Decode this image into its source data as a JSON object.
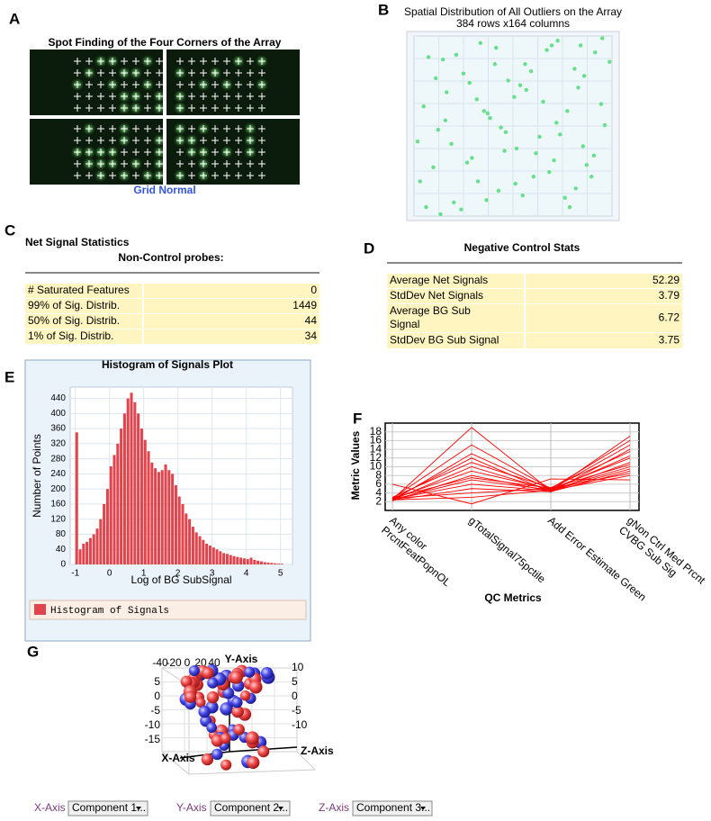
{
  "panel_labels": [
    "A",
    "B",
    "C",
    "D",
    "E",
    "F",
    "G"
  ],
  "panel_a": {
    "title": "Spot Finding of the Four Corners of the Array",
    "caption": "Grid Normal"
  },
  "panel_c": {
    "title": "Net Signal Statistics",
    "subtitle": "Non-Control probes:",
    "rows": [
      [
        "# Saturated Features",
        0
      ],
      [
        "99% of Sig. Distrib.",
        1449
      ],
      [
        "50% of Sig. Distrib.",
        44
      ],
      [
        "1% of Sig. Distrib.",
        34
      ]
    ]
  },
  "panel_d": {
    "title": "Negative Control Stats",
    "rows": [
      [
        "Average Net Signals",
        52.29
      ],
      [
        "StdDev Net Signals",
        3.79
      ],
      [
        "Average BG Sub Signal",
        6.72
      ],
      [
        "StdDev BG Sub Signal",
        3.75
      ]
    ]
  },
  "panel_g": {
    "axis_titles": [
      "Y-Axis",
      "Z-Axis",
      "X-Axis"
    ],
    "top_ticks": [
      -40,
      -20,
      0,
      20,
      40
    ],
    "left_ticks": [
      5,
      0,
      -5,
      -10,
      -15
    ],
    "right_ticks": [
      10,
      5,
      0,
      -5,
      -10
    ],
    "controls": [
      {
        "label": "X-Axis",
        "value": "Component 1..."
      },
      {
        "label": "Y-Axis",
        "value": "Component 2..."
      },
      {
        "label": "Z-Axis",
        "value": "Component 3..."
      }
    ]
  },
  "chart_data": [
    {
      "type": "scatter",
      "title": "Spatial Distribution of All Outliers on the Array",
      "subtitle": "384 rows x164 columns",
      "color": "#66e08a",
      "xlim": [
        0,
        164
      ],
      "ylim": [
        0,
        384
      ],
      "x": [
        5,
        12,
        20,
        27,
        33,
        41,
        48,
        55,
        63,
        70,
        78,
        85,
        92,
        99,
        107,
        114,
        121,
        129,
        136,
        143,
        150,
        158,
        8,
        16,
        24,
        31,
        39,
        46,
        53,
        61,
        68,
        75,
        83,
        90,
        97,
        104,
        112,
        119,
        127,
        134,
        141,
        149,
        156,
        3,
        10,
        18,
        26,
        35,
        44,
        52,
        60,
        67,
        76,
        84,
        93,
        101,
        110,
        118,
        125,
        133,
        140,
        147,
        155,
        162,
        22,
        58,
        88,
        116,
        138,
        72
      ],
      "y": [
        310,
        45,
        200,
        120,
        355,
        80,
        260,
        15,
        175,
        330,
        95,
        240,
        60,
        300,
        140,
        20,
        210,
        365,
        110,
        275,
        35,
        190,
        150,
        280,
        50,
        230,
        370,
        100,
        310,
        165,
        25,
        245,
        130,
        340,
        75,
        215,
        290,
        10,
        160,
        325,
        85,
        255,
        5,
        225,
        365,
        90,
        180,
        40,
        270,
        135,
        350,
        60,
        205,
        315,
        115,
        250,
        30,
        185,
        345,
        70,
        235,
        300,
        145,
        55,
        380,
        160,
        105,
        265,
        20,
        195
      ]
    },
    {
      "type": "histogram",
      "title": "Histogram of Signals Plot",
      "x_label": "Log of BG SubSignal",
      "y_label": "Number of Points",
      "legend": "Histogram of Signals",
      "color": "#e0444c",
      "bins": [
        -1,
        -0.9,
        -0.8,
        -0.7,
        -0.6,
        -0.5,
        -0.4,
        -0.3,
        -0.2,
        -0.1,
        0,
        0.1,
        0.2,
        0.3,
        0.4,
        0.5,
        0.6,
        0.7,
        0.8,
        0.9,
        1,
        1.1,
        1.2,
        1.3,
        1.4,
        1.5,
        1.6,
        1.7,
        1.8,
        1.9,
        2,
        2.1,
        2.2,
        2.3,
        2.4,
        2.5,
        2.6,
        2.7,
        2.8,
        2.9,
        3,
        3.1,
        3.2,
        3.3,
        3.4,
        3.5,
        3.6,
        3.7,
        3.8,
        3.9,
        4,
        4.1,
        4.2,
        4.3,
        4.4,
        4.5,
        4.6,
        4.7,
        4.8,
        4.9,
        5,
        5.1
      ],
      "counts": [
        350,
        40,
        55,
        60,
        70,
        80,
        95,
        120,
        160,
        200,
        260,
        290,
        320,
        360,
        400,
        440,
        455,
        430,
        400,
        360,
        330,
        300,
        270,
        255,
        245,
        250,
        265,
        250,
        240,
        210,
        180,
        160,
        135,
        120,
        100,
        85,
        75,
        65,
        55,
        50,
        45,
        40,
        35,
        30,
        28,
        25,
        22,
        20,
        18,
        16,
        14,
        18,
        12,
        10,
        8,
        6,
        5,
        4,
        3,
        2,
        2
      ],
      "xlim": [
        -1.15,
        5.35
      ],
      "ylim": [
        0,
        470
      ],
      "xticks": [
        -1,
        0,
        1,
        2,
        3,
        4,
        5
      ],
      "yticks": [
        0,
        40,
        80,
        120,
        160,
        200,
        240,
        280,
        320,
        360,
        400,
        440
      ],
      "grid": true
    },
    {
      "type": "parallel",
      "x_label": "QC Metrics",
      "y_label": "Metric Values",
      "categories": [
        [
          "Any color",
          "PrcntFeatPopnOL"
        ],
        [
          "gTotalSignal75pctile"
        ],
        [
          "Add Error Estimate Green"
        ],
        [
          "gNon Ctrl Med Prcnt",
          "CVBG Sub Sig"
        ]
      ],
      "color": "#ff0000",
      "ylim": [
        0,
        20
      ],
      "yticks": [
        2,
        4,
        6,
        8,
        10,
        12,
        14,
        16,
        18
      ],
      "grid": true,
      "series": [
        {
          "values": [
            2.5,
            19,
            4.5,
            17
          ]
        },
        {
          "values": [
            2.8,
            15,
            5,
            16
          ]
        },
        {
          "values": [
            2.3,
            13,
            4.8,
            15
          ]
        },
        {
          "values": [
            2.6,
            12,
            4.2,
            14
          ]
        },
        {
          "values": [
            3,
            11,
            5.2,
            13.5
          ]
        },
        {
          "values": [
            2.4,
            10,
            4.6,
            12.5
          ]
        },
        {
          "values": [
            2.7,
            9,
            4.9,
            12
          ]
        },
        {
          "values": [
            2.2,
            8,
            4.4,
            11
          ]
        },
        {
          "values": [
            2.9,
            7.5,
            5.1,
            10.5
          ]
        },
        {
          "values": [
            2.5,
            7,
            4.7,
            10
          ]
        },
        {
          "values": [
            2.6,
            6,
            4.5,
            9.5
          ]
        },
        {
          "values": [
            2.3,
            5,
            4.3,
            9
          ]
        },
        {
          "values": [
            2.8,
            4,
            5,
            8.5
          ]
        },
        {
          "values": [
            2.4,
            3,
            4.6,
            8
          ]
        },
        {
          "values": [
            6,
            1.5,
            7.2,
            7
          ]
        }
      ]
    }
  ]
}
